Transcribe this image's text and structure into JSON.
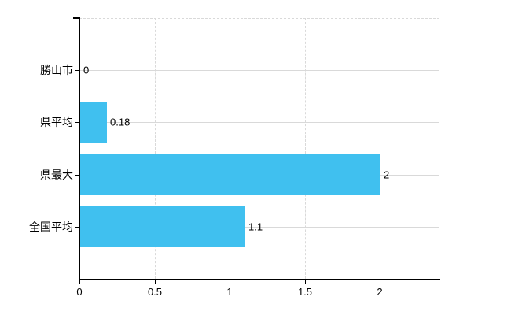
{
  "chart_data": {
    "type": "bar",
    "orientation": "horizontal",
    "title": "",
    "xlabel": "",
    "ylabel": "",
    "categories": [
      "勝山市",
      "県平均",
      "県最大",
      "全国平均"
    ],
    "values": [
      0,
      0.18,
      2,
      1.1
    ],
    "value_labels": [
      "0",
      "0.18",
      "2",
      "1.1"
    ],
    "x_ticks": [
      0,
      0.5,
      1,
      1.5,
      2
    ],
    "x_tick_labels": [
      "0",
      "0.5",
      "1",
      "1.5",
      "2"
    ],
    "xlim": [
      0,
      2.4
    ],
    "grid": "on",
    "legend": "none",
    "colors": {
      "bar": "#40C0EF",
      "grid": "#D9D9D9",
      "axis": "#000000",
      "text": "#000000",
      "background": "#FFFFFF"
    }
  }
}
